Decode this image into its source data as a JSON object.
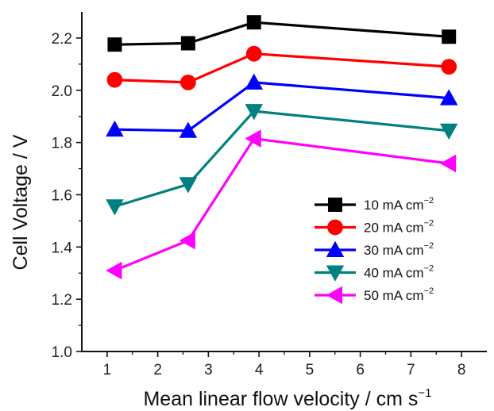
{
  "chart_data": {
    "type": "line",
    "xlabel_main": "Mean linear flow velocity / cm s",
    "xlabel_sup": "−1",
    "ylabel": "Cell Voltage / V",
    "xlim": [
      0.5,
      8.5
    ],
    "ylim": [
      1.0,
      2.3
    ],
    "xticks": [
      1,
      2,
      3,
      4,
      5,
      6,
      7,
      8
    ],
    "yticks": [
      1.0,
      1.2,
      1.4,
      1.6,
      1.8,
      2.0,
      2.2
    ],
    "ytick_labels": [
      "1.0",
      "1.2",
      "1.4",
      "1.6",
      "1.8",
      "2.0",
      "2.2"
    ],
    "x": [
      1.15,
      2.6,
      3.9,
      7.75
    ],
    "grid": false,
    "legend_placement": "center-right",
    "series": [
      {
        "name": "10 mA cm",
        "name_sup": "−2",
        "color": "#000000",
        "marker": "square",
        "values": [
          2.175,
          2.18,
          2.26,
          2.205
        ]
      },
      {
        "name": "20 mA cm",
        "name_sup": "−2",
        "color": "#ff0000",
        "marker": "circle",
        "values": [
          2.04,
          2.03,
          2.14,
          2.09
        ]
      },
      {
        "name": "30 mA cm",
        "name_sup": "−2",
        "color": "#0000ff",
        "marker": "triangle-up",
        "values": [
          1.85,
          1.845,
          2.03,
          1.97
        ]
      },
      {
        "name": "40 mA cm",
        "name_sup": "−2",
        "color": "#008080",
        "marker": "triangle-down",
        "values": [
          1.555,
          1.64,
          1.92,
          1.845
        ]
      },
      {
        "name": "50 mA cm",
        "name_sup": "−2",
        "color": "#ff00ff",
        "marker": "triangle-left",
        "values": [
          1.31,
          1.425,
          1.815,
          1.72
        ]
      }
    ]
  }
}
